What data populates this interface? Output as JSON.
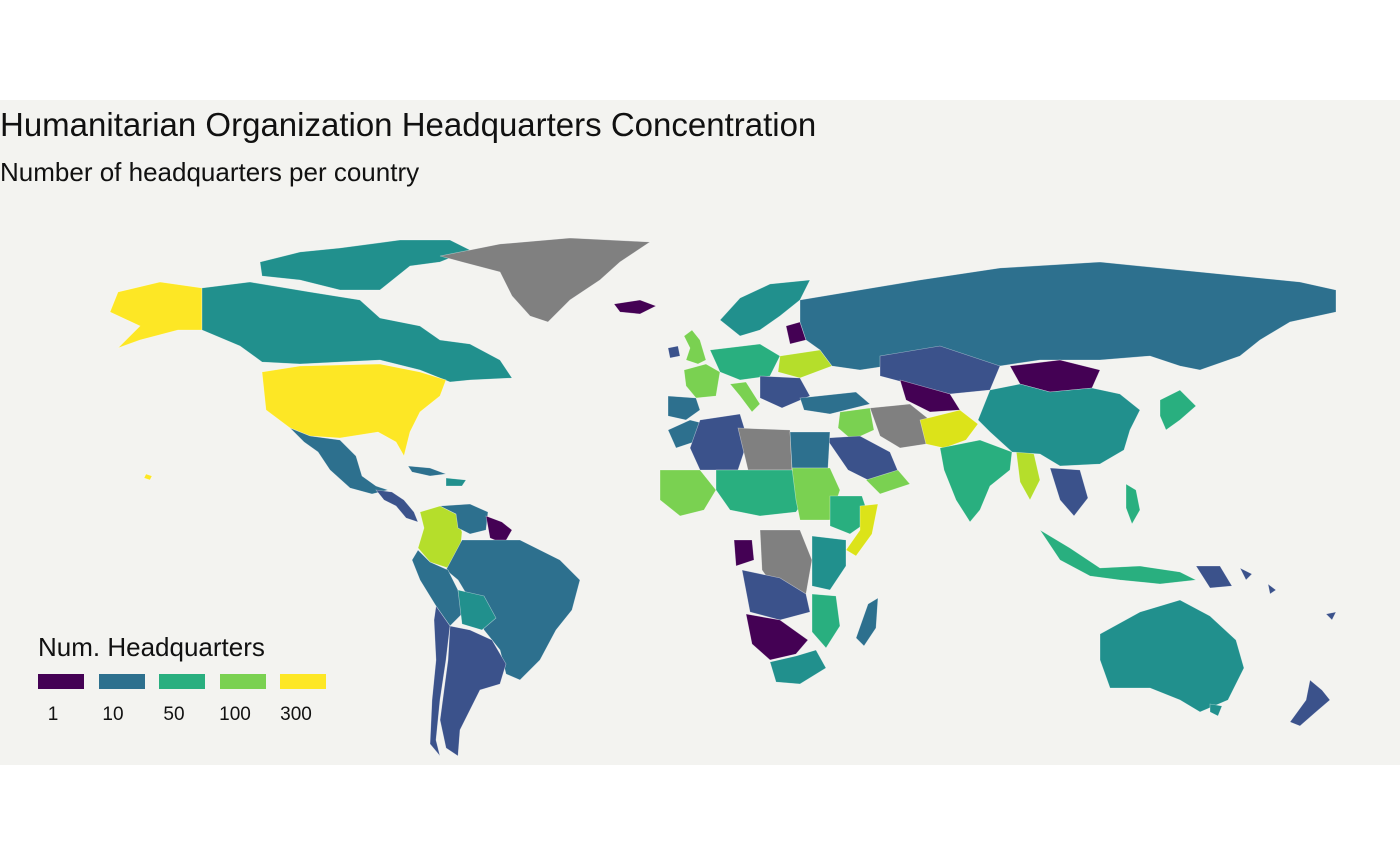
{
  "map": {
    "title": "Humanitarian Organization Headquarters Concentration",
    "subtitle": "Number of headquarters per country",
    "no_data_color": "#808080",
    "background_color": "#f3f3f0"
  },
  "legend": {
    "title": "Num. Headquarters",
    "scale": "log",
    "breaks": [
      {
        "label": "1",
        "color": "#440154"
      },
      {
        "label": "10",
        "color": "#2d708e"
      },
      {
        "label": "50",
        "color": "#29af7f"
      },
      {
        "label": "100",
        "color": "#7ad151"
      },
      {
        "label": "300",
        "color": "#fde725"
      }
    ]
  },
  "palette": {
    "v1": "#440154",
    "v3": "#3b528b",
    "v10": "#2d708e",
    "v20": "#21908d",
    "v50": "#29af7f",
    "v70": "#3ebd6e",
    "v100": "#7ad151",
    "v150": "#b5de2b",
    "v250": "#dce319",
    "v300": "#fde725",
    "na": "#808080"
  }
}
